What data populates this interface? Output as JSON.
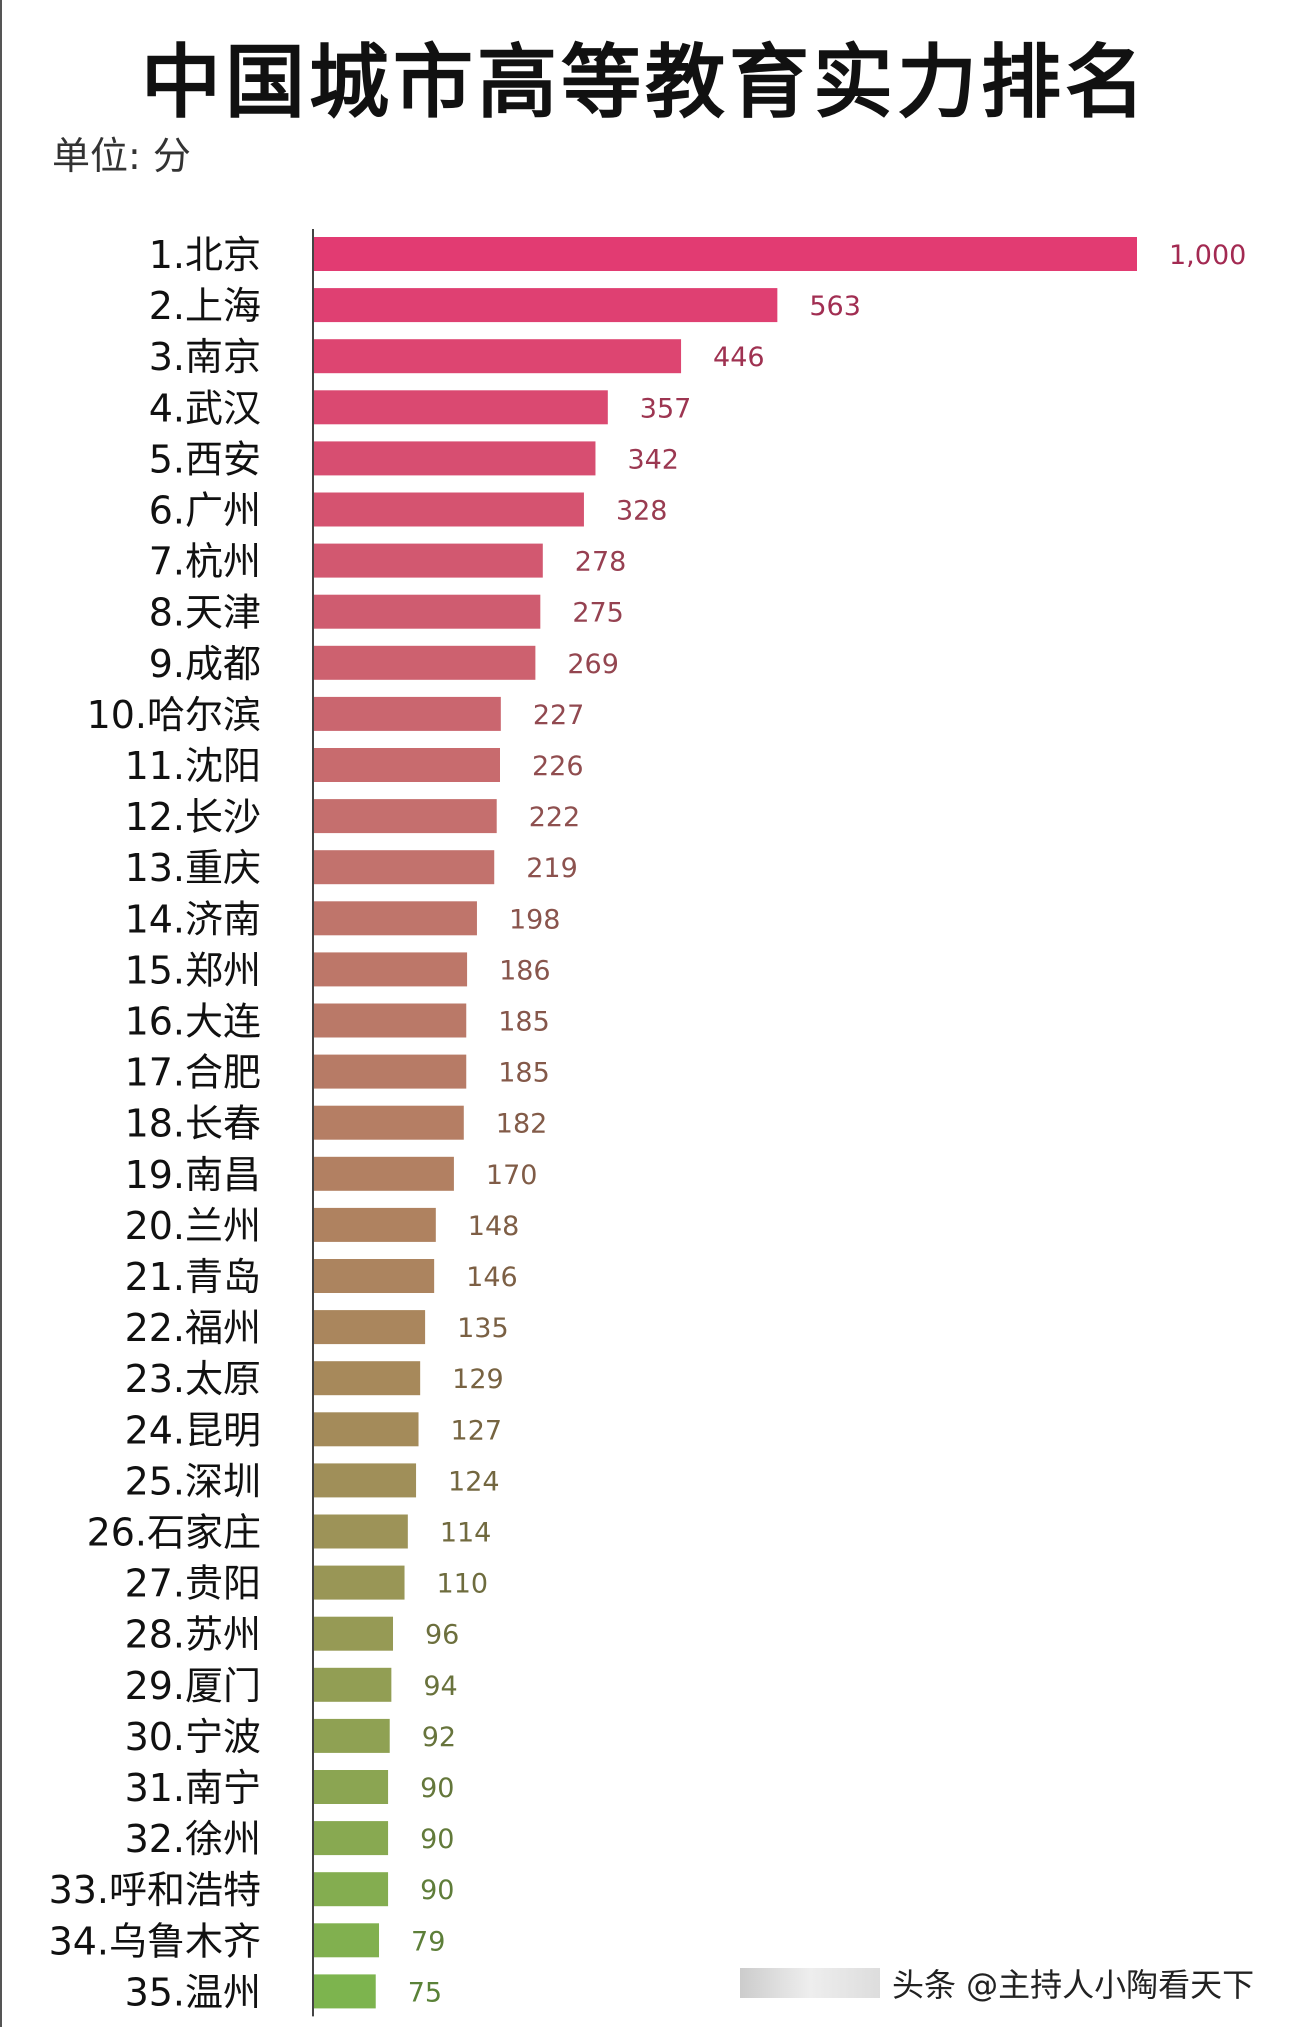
{
  "header": {
    "title": "中国城市高等教育实力排名",
    "unit": "单位: 分"
  },
  "watermark": "头条 @主持人小陶看天下",
  "chart_data": {
    "type": "bar",
    "orientation": "horizontal",
    "title": "中国城市高等教育实力排名",
    "unit": "单位: 分",
    "categories": [
      "1.北京",
      "2.上海",
      "3.南京",
      "4.武汉",
      "5.西安",
      "6.广州",
      "7.杭州",
      "8.天津",
      "9.成都",
      "10.哈尔滨",
      "11.沈阳",
      "12.长沙",
      "13.重庆",
      "14.济南",
      "15.郑州",
      "16.大连",
      "17.合肥",
      "18.长春",
      "19.南昌",
      "20.兰州",
      "21.青岛",
      "22.福州",
      "23.太原",
      "24.昆明",
      "25.深圳",
      "26.石家庄",
      "27.贵阳",
      "28.苏州",
      "29.厦门",
      "30.宁波",
      "31.南宁",
      "32.徐州",
      "33.呼和浩特",
      "34.乌鲁木齐",
      "35.温州"
    ],
    "values": [
      1000,
      563,
      446,
      357,
      342,
      328,
      278,
      275,
      269,
      227,
      226,
      222,
      219,
      198,
      186,
      185,
      185,
      182,
      170,
      148,
      146,
      135,
      129,
      127,
      124,
      114,
      110,
      96,
      94,
      92,
      90,
      90,
      90,
      79,
      75
    ],
    "value_labels": [
      "1,000",
      "563",
      "446",
      "357",
      "342",
      "328",
      "278",
      "275",
      "269",
      "227",
      "226",
      "222",
      "219",
      "198",
      "186",
      "185",
      "185",
      "182",
      "170",
      "148",
      "146",
      "135",
      "129",
      "127",
      "124",
      "114",
      "110",
      "96",
      "94",
      "92",
      "90",
      "90",
      "90",
      "79",
      "75"
    ],
    "xlim": [
      0,
      1000
    ],
    "grid": false,
    "color_gradient": [
      "#e23b72",
      "#c4716e",
      "#a58a5a",
      "#7db44e"
    ]
  }
}
